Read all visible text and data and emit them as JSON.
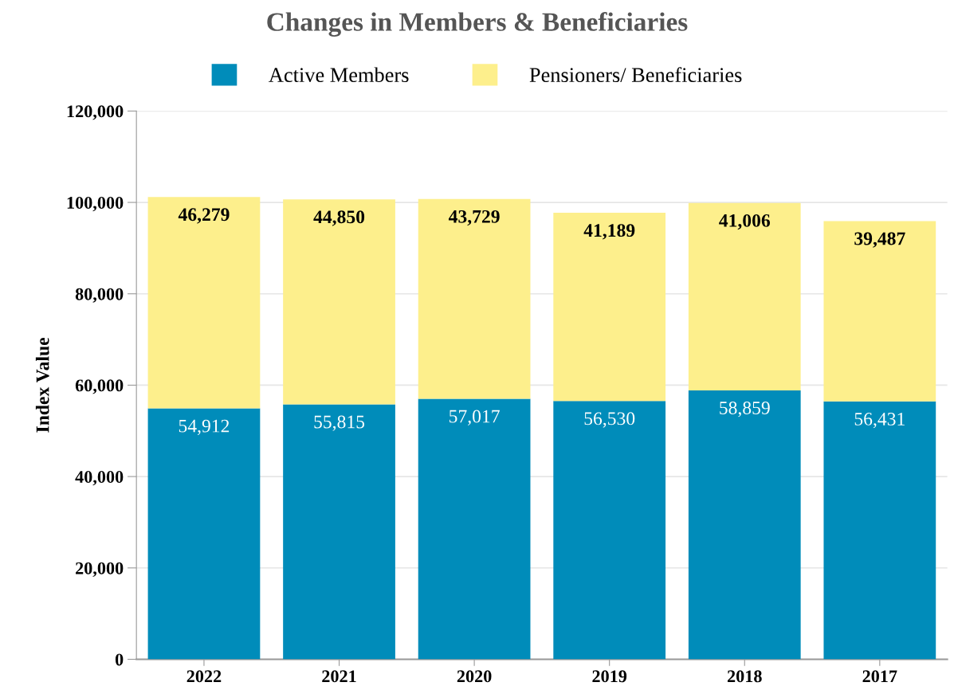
{
  "chart_data": {
    "type": "bar",
    "stacked": true,
    "title": "Changes in Members & Beneficiaries",
    "ylabel": "Index Value",
    "categories": [
      "2022",
      "2021",
      "2020",
      "2019",
      "2018",
      "2017"
    ],
    "series": [
      {
        "name": "Active Members",
        "color": "#008cba",
        "values": [
          54912,
          55815,
          57017,
          56530,
          58859,
          56431
        ],
        "value_labels": [
          "54,912",
          "55,815",
          "57,017",
          "56,530",
          "58,859",
          "56,431"
        ]
      },
      {
        "name": "Pensioners/ Beneficiaries",
        "color": "#fdef8c",
        "values": [
          46279,
          44850,
          43729,
          41189,
          41006,
          39487
        ],
        "value_labels": [
          "46,279",
          "44,850",
          "43,729",
          "41,189",
          "41,006",
          "39,487"
        ]
      }
    ],
    "ylim": [
      0,
      120000
    ],
    "yticks": [
      0,
      {
        "value": 20000,
        "label": "20,000"
      },
      {
        "value": 40000,
        "label": "40,000"
      },
      {
        "value": 60000,
        "label": "60,000"
      },
      {
        "value": 80000,
        "label": "80,000"
      },
      {
        "value": 100000,
        "label": "100,000"
      },
      {
        "value": 120000,
        "label": "120,000"
      }
    ],
    "grid": "y",
    "legend": "top"
  }
}
